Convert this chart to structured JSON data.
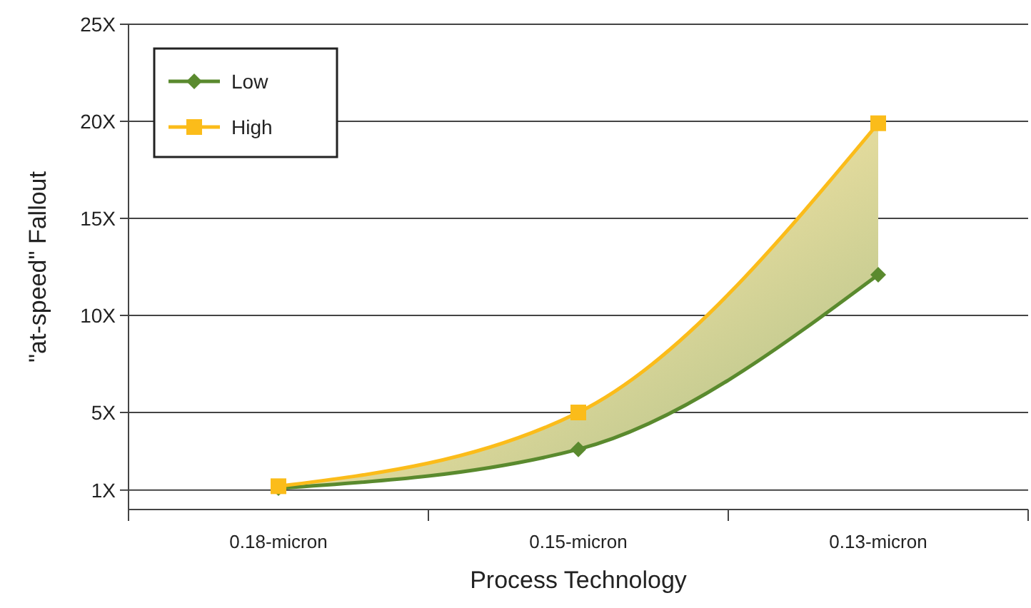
{
  "chart_data": {
    "type": "line",
    "xlabel": "Process Technology",
    "ylabel": "\"at-speed\" Fallout",
    "categories": [
      "0.18-micron",
      "0.15-micron",
      "0.13-micron"
    ],
    "series": [
      {
        "name": "Low",
        "color": "#5a8a2e",
        "values": [
          1.1,
          3.1,
          12.1
        ],
        "marker": "diamond"
      },
      {
        "name": "High",
        "color": "#fbbc1a",
        "values": [
          1.2,
          5,
          19.9
        ],
        "marker": "square"
      }
    ],
    "ylim": [
      0,
      25
    ],
    "yticks": [
      {
        "value": 1,
        "label": "1X"
      },
      {
        "value": 5,
        "label": "5X"
      },
      {
        "value": 10,
        "label": "10X"
      },
      {
        "value": 15,
        "label": "15X"
      },
      {
        "value": 20,
        "label": "20X"
      },
      {
        "value": 25,
        "label": "25X"
      }
    ],
    "grid": "y",
    "legend": "top left",
    "line_style": "solid"
  }
}
